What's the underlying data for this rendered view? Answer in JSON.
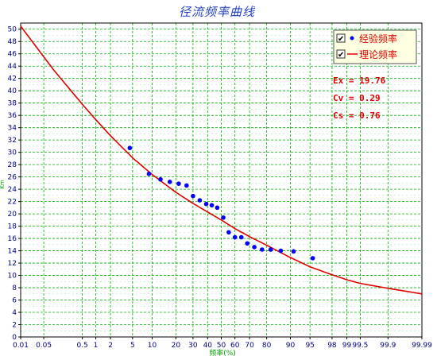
{
  "chart_data": {
    "type": "scatter",
    "title": "径流频率曲线",
    "xlabel": "频率(%)",
    "ylabel": "Km",
    "x_scale": "probability",
    "x_ticks": [
      0.01,
      0.05,
      0.5,
      1,
      2,
      5,
      10,
      20,
      30,
      40,
      50,
      60,
      70,
      80,
      90,
      95,
      98,
      99,
      99.5,
      99.9,
      99.99
    ],
    "x_tick_labels": [
      "0.01",
      "0.05",
      "0.5",
      "1",
      "2",
      "5",
      "10",
      "20",
      "30",
      "40",
      "50",
      "60",
      "70",
      "80",
      "90",
      "95",
      "98",
      "99",
      "99.5",
      "99.9",
      "99.99"
    ],
    "ylim": [
      0,
      51
    ],
    "y_ticks": [
      0,
      2,
      4,
      6,
      8,
      10,
      12,
      14,
      16,
      18,
      20,
      22,
      24,
      26,
      28,
      30,
      32,
      34,
      36,
      38,
      40,
      42,
      44,
      46,
      48,
      50
    ],
    "grid": true,
    "legend_position": "top-right",
    "series": [
      {
        "name": "经验频率",
        "kind": "points",
        "color": "#0000ff",
        "x": [
          4.5,
          9,
          13,
          17,
          21.5,
          26,
          30,
          34.5,
          39,
          43,
          47,
          51.5,
          55.5,
          60,
          64.5,
          68.5,
          73,
          77.5,
          82,
          86.5,
          91,
          95.5
        ],
        "y": [
          30.7,
          26.5,
          25.6,
          25.2,
          24.9,
          24.6,
          22.9,
          22.2,
          21.6,
          21.4,
          21.0,
          19.4,
          17.0,
          16.2,
          16.2,
          15.2,
          14.6,
          14.2,
          14.2,
          14.0,
          13.9,
          12.8
        ]
      },
      {
        "name": "理论频率",
        "kind": "curve",
        "color": "#e00000",
        "x": [
          0.01,
          0.05,
          0.1,
          0.5,
          1,
          2,
          5,
          10,
          20,
          30,
          40,
          50,
          60,
          70,
          80,
          90,
          95,
          98,
          99,
          99.5,
          99.9,
          99.99
        ],
        "y": [
          50.5,
          45.5,
          43.2,
          37.8,
          35.3,
          32.7,
          29.1,
          26.4,
          23.5,
          21.7,
          20.3,
          19.0,
          17.6,
          16.3,
          14.9,
          12.9,
          11.4,
          10.1,
          9.3,
          8.7,
          7.9,
          7.0
        ]
      }
    ],
    "stats": [
      {
        "label": "Ex",
        "value": "19.76"
      },
      {
        "label": "Cv",
        "value": "0.29"
      },
      {
        "label": "Cs",
        "value": "0.76"
      }
    ]
  },
  "legend": {
    "items": [
      {
        "label": "经验频率",
        "checked": true,
        "check_glyph": "✔"
      },
      {
        "label": "理论频率",
        "checked": true,
        "check_glyph": "✔"
      }
    ]
  }
}
